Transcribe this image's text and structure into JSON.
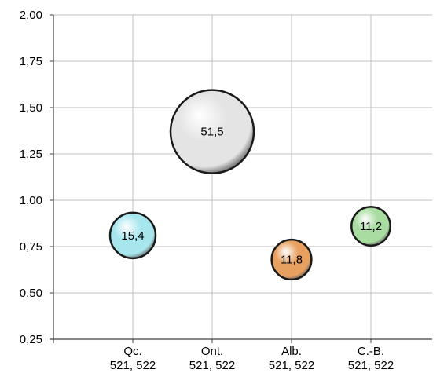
{
  "chart_data": {
    "type": "bubble",
    "title": "",
    "xlabel": "",
    "ylabel": "",
    "ylim": [
      0.25,
      2.0
    ],
    "yticks": [
      "2,00",
      "1,75",
      "1,50",
      "1,25",
      "1,00",
      "0,75",
      "0,50",
      "0,25"
    ],
    "ytick_values": [
      2.0,
      1.75,
      1.5,
      1.25,
      1.0,
      0.75,
      0.5,
      0.25
    ],
    "categories": [
      {
        "name": "Qc.",
        "codes": "521, 522"
      },
      {
        "name": "Ont.",
        "codes": "521, 522"
      },
      {
        "name": "Alb.",
        "codes": "521, 522"
      },
      {
        "name": "C.-B.",
        "codes": "521, 522"
      }
    ],
    "bubbles": [
      {
        "category": "Qc.",
        "y": 0.81,
        "size": 15.4,
        "label": "15,4",
        "color": "#a8e6ee"
      },
      {
        "category": "Ont.",
        "y": 1.37,
        "size": 51.5,
        "label": "51,5",
        "color": "#e4e4e4"
      },
      {
        "category": "Alb.",
        "y": 0.68,
        "size": 11.8,
        "label": "11,8",
        "color": "#e8a060"
      },
      {
        "category": "C.-B.",
        "y": 0.86,
        "size": 11.2,
        "label": "11,2",
        "color": "#a8dca0"
      }
    ],
    "grid": true,
    "legend": "none"
  }
}
